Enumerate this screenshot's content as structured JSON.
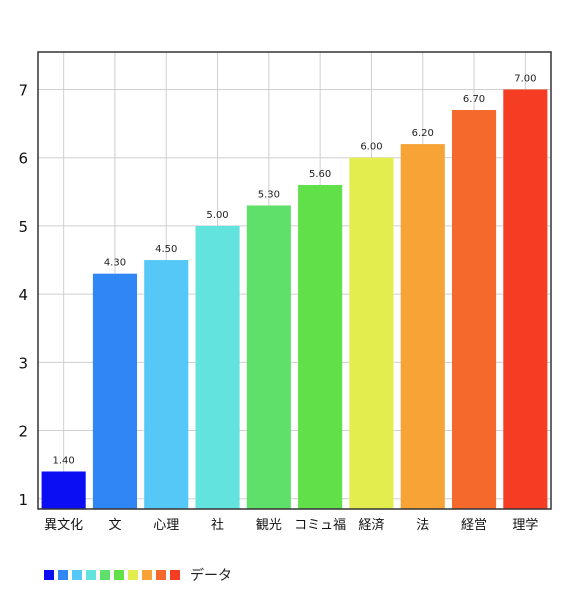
{
  "chart_data": {
    "type": "bar",
    "categories": [
      "異文化",
      "文",
      "心理",
      "社",
      "観光",
      "コミュ福",
      "経済",
      "法",
      "経営",
      "理学"
    ],
    "series": [
      {
        "name": "データ",
        "values": [
          1.4,
          4.3,
          4.5,
          5.0,
          5.3,
          5.6,
          6.0,
          6.2,
          6.7,
          7.0
        ],
        "data_labels": [
          "1.40",
          "4.30",
          "4.50",
          "5.00",
          "5.30",
          "5.60",
          "6.00",
          "6.20",
          "6.70",
          "7.00"
        ]
      }
    ],
    "colors": [
      "#0b0ef2",
      "#2f86f4",
      "#56c8f7",
      "#63e3dd",
      "#5fe06a",
      "#62e04a",
      "#e3ee4e",
      "#f7a336",
      "#f56a2c",
      "#f43d22"
    ],
    "yticks": [
      "1",
      "2",
      "3",
      "4",
      "5",
      "6",
      "7"
    ],
    "ylim": [
      0.85,
      7.55
    ],
    "grid": true,
    "legend": {
      "position": "bottom-left",
      "label": "データ"
    }
  }
}
